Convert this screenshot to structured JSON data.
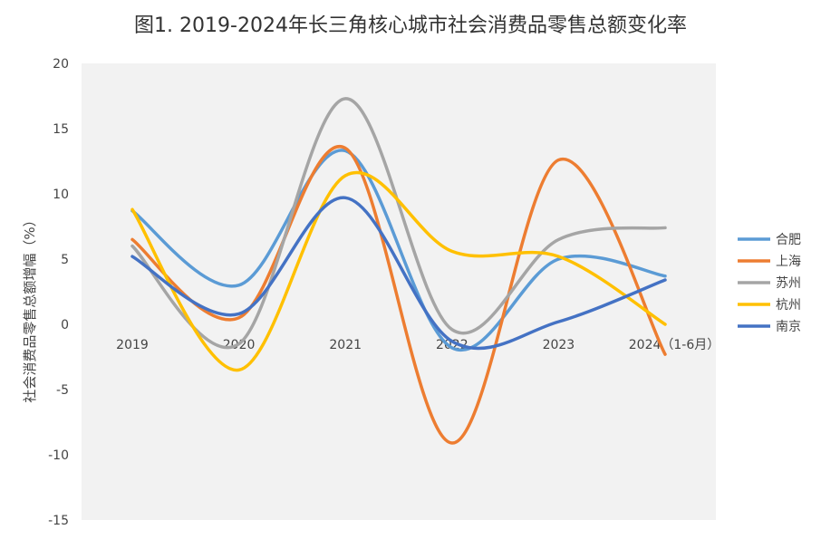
{
  "chart_data": {
    "type": "line",
    "title": "图1. 2019-2024年长三角核心城市社会消费品零售总额变化率",
    "ylabel": "社会消费品零售总额增幅（%）",
    "xlabel": "",
    "categories": [
      "2019",
      "2020",
      "2021",
      "2022",
      "2023",
      "2024（1-6月）"
    ],
    "ylim": [
      -15,
      20
    ],
    "yticks": [
      20,
      15,
      10,
      5,
      0,
      -5,
      -10,
      -15
    ],
    "smooth": true,
    "legend_position": "right",
    "series": [
      {
        "name": "合肥",
        "color": "#5B9BD5",
        "values": [
          8.7,
          3.0,
          13.3,
          -1.8,
          5.0,
          3.7
        ]
      },
      {
        "name": "上海",
        "color": "#ED7D31",
        "values": [
          6.5,
          0.5,
          13.5,
          -9.1,
          12.6,
          -2.3
        ]
      },
      {
        "name": "苏州",
        "color": "#A5A5A5",
        "values": [
          6.0,
          -1.5,
          17.3,
          -0.4,
          6.5,
          7.4
        ]
      },
      {
        "name": "杭州",
        "color": "#FFC000",
        "values": [
          8.8,
          -3.5,
          11.4,
          5.6,
          5.2,
          0.0
        ]
      },
      {
        "name": "南京",
        "color": "#4472C4",
        "values": [
          5.2,
          0.8,
          9.7,
          -1.3,
          0.2,
          3.4
        ]
      }
    ]
  }
}
